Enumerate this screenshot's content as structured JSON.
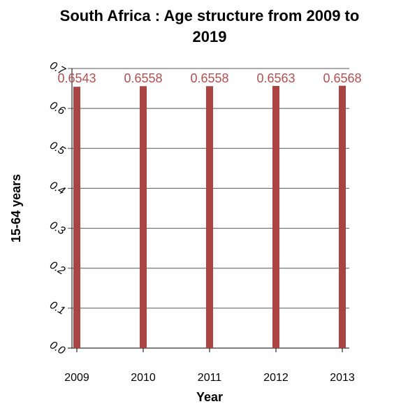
{
  "chart_data": {
    "type": "bar",
    "title_lines": [
      "South Africa : Age structure from 2009 to",
      "2019"
    ],
    "xlabel": "Year",
    "ylabel": "15-64 years",
    "categories": [
      "2009",
      "2010",
      "2011",
      "2012",
      "2013"
    ],
    "series": [
      {
        "values": [
          0.6543,
          0.6558,
          0.6558,
          0.6563,
          0.6568
        ]
      }
    ],
    "data_labels": [
      "0.6543",
      "0.6558",
      "0.6558",
      "0.6563",
      "0.6568"
    ],
    "yticks": [
      {
        "value": 0.0,
        "label": "0.0"
      },
      {
        "value": 0.1,
        "label": "0.1"
      },
      {
        "value": 0.2,
        "label": "0.2"
      },
      {
        "value": 0.3,
        "label": "0.3"
      },
      {
        "value": 0.4,
        "label": "0.4"
      },
      {
        "value": 0.5,
        "label": "0.5"
      },
      {
        "value": 0.6,
        "label": "0.6"
      },
      {
        "value": 0.7,
        "label": "0.7"
      }
    ],
    "ylim": [
      0,
      0.7
    ],
    "grid": true,
    "bar_color": "#a94442",
    "label_color": "#b05050"
  }
}
